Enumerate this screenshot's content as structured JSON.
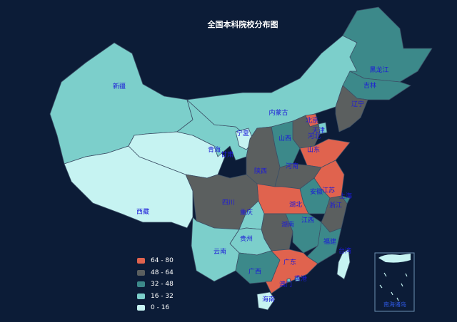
{
  "title": "全国本科院校分布图",
  "legend": [
    {
      "label": "64 - 80",
      "color": "#e0634e"
    },
    {
      "label": "48 - 64",
      "color": "#5b5f5f"
    },
    {
      "label": "32 - 48",
      "color": "#3c898a"
    },
    {
      "label": "16 - 32",
      "color": "#7ccfcb"
    },
    {
      "label": "0 - 16",
      "color": "#c6f3f2"
    }
  ],
  "provinces": [
    {
      "name": "新疆",
      "band": 3
    },
    {
      "name": "西藏",
      "band": 4
    },
    {
      "name": "青海",
      "band": 4
    },
    {
      "name": "甘肃",
      "band": 3
    },
    {
      "name": "内蒙古",
      "band": 3
    },
    {
      "name": "宁夏",
      "band": 4
    },
    {
      "name": "黑龙江",
      "band": 2
    },
    {
      "name": "吉林",
      "band": 2
    },
    {
      "name": "辽宁",
      "band": 1
    },
    {
      "name": "北京",
      "band": 0
    },
    {
      "name": "天津",
      "band": 3
    },
    {
      "name": "河北",
      "band": 1
    },
    {
      "name": "山西",
      "band": 2
    },
    {
      "name": "山东",
      "band": 0
    },
    {
      "name": "陕西",
      "band": 1
    },
    {
      "name": "河南",
      "band": 1
    },
    {
      "name": "江苏",
      "band": 0
    },
    {
      "name": "安徽",
      "band": 2
    },
    {
      "name": "上海",
      "band": 2
    },
    {
      "name": "湖北",
      "band": 0
    },
    {
      "name": "浙江",
      "band": 1
    },
    {
      "name": "四川",
      "band": 1
    },
    {
      "name": "重庆",
      "band": 3
    },
    {
      "name": "湖南",
      "band": 1
    },
    {
      "name": "江西",
      "band": 2
    },
    {
      "name": "福建",
      "band": 2
    },
    {
      "name": "贵州",
      "band": 3
    },
    {
      "name": "云南",
      "band": 3
    },
    {
      "name": "广西",
      "band": 2
    },
    {
      "name": "广东",
      "band": 0
    },
    {
      "name": "台湾",
      "band": 4
    },
    {
      "name": "香港",
      "band": 3
    },
    {
      "name": "澳门",
      "band": 3
    },
    {
      "name": "海南",
      "band": 4
    }
  ],
  "inset_label": "南海诸岛"
}
